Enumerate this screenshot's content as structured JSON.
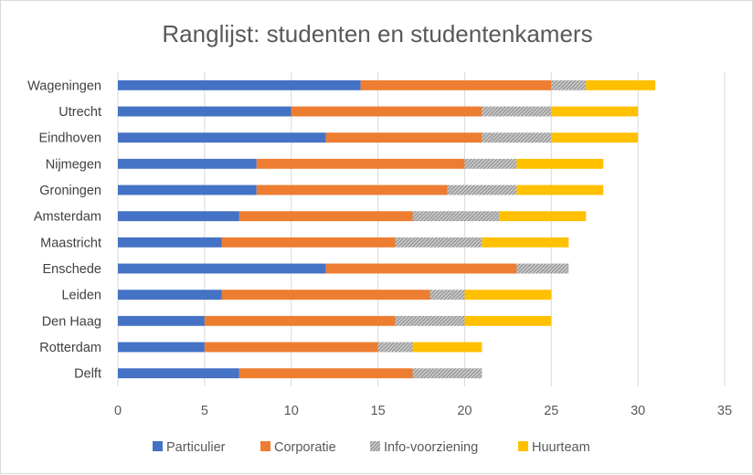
{
  "chart_data": {
    "type": "bar",
    "orientation": "horizontal",
    "stacked": true,
    "title": "Ranglijst: studenten en studentenkamers",
    "categories": [
      "Wageningen",
      "Utrecht",
      "Eindhoven",
      "Nijmegen",
      "Groningen",
      "Amsterdam",
      "Maastricht",
      "Enschede",
      "Leiden",
      "Den Haag",
      "Rotterdam",
      "Delft"
    ],
    "series": [
      {
        "name": "Particulier",
        "color": "#4472c4",
        "values": [
          14,
          10,
          12,
          8,
          8,
          7,
          6,
          12,
          6,
          5,
          5,
          7
        ]
      },
      {
        "name": "Corporatie",
        "color": "#ed7d31",
        "values": [
          11,
          11,
          9,
          12,
          11,
          10,
          10,
          11,
          12,
          11,
          10,
          10
        ]
      },
      {
        "name": "Info-voorziening",
        "color": "#a5a5a5",
        "pattern": "hatched",
        "values": [
          2,
          4,
          4,
          3,
          4,
          5,
          5,
          3,
          2,
          4,
          2,
          4
        ]
      },
      {
        "name": "Huurteam",
        "color": "#ffc000",
        "values": [
          4,
          5,
          5,
          5,
          5,
          5,
          5,
          0,
          5,
          5,
          4,
          0
        ]
      }
    ],
    "xlim": [
      0,
      35
    ],
    "xticks": [
      "0",
      "5",
      "10",
      "15",
      "20",
      "25",
      "30",
      "35"
    ],
    "grid": true,
    "legend": "bottom"
  }
}
